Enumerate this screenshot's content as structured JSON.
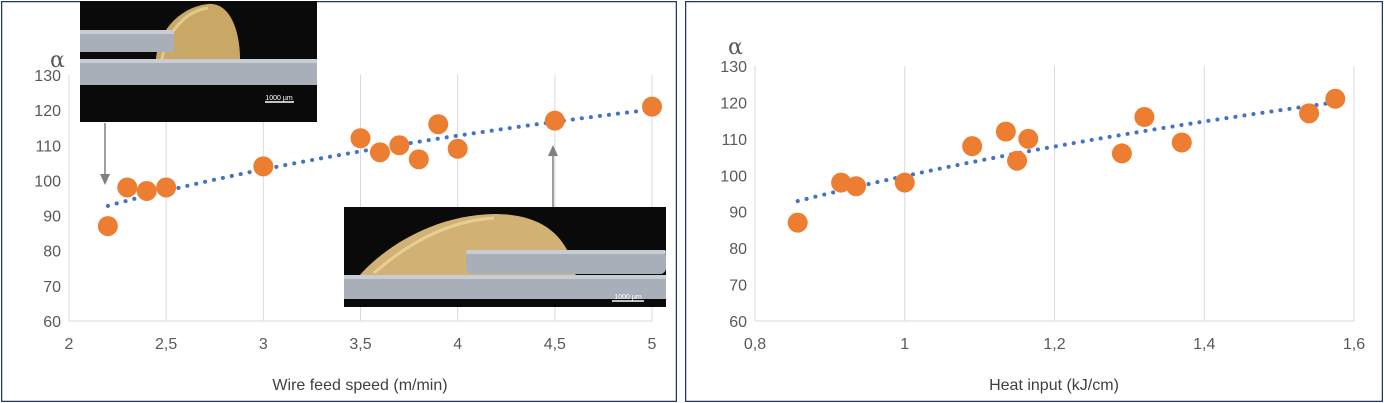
{
  "colors": {
    "points": "#ED7D31",
    "trend": "#4472C4",
    "grid": "#D9D9D9",
    "panel_border": "#1F3864",
    "text": "#595959"
  },
  "chart_data": [
    {
      "type": "scatter",
      "ylabel": "α",
      "xlabel": "Wire feed speed (m/min)",
      "xlim": [
        2,
        5
      ],
      "ylim": [
        60,
        130
      ],
      "xticks": [
        "2",
        "2,5",
        "3",
        "3,5",
        "4",
        "4,5",
        "5"
      ],
      "yticks": [
        "60",
        "70",
        "80",
        "90",
        "100",
        "110",
        "120",
        "130"
      ],
      "grid": "vertical",
      "trendline": "logarithmic (dotted)",
      "x": [
        2.2,
        2.3,
        2.4,
        2.5,
        3.0,
        3.5,
        3.6,
        3.7,
        3.8,
        3.9,
        4.0,
        4.5,
        5.0
      ],
      "y": [
        87,
        98,
        97,
        98,
        104,
        112,
        108,
        110,
        106,
        116,
        109,
        117,
        121
      ],
      "insets": [
        {
          "scale_label": "1000 µm",
          "points_to_x": 2.2
        },
        {
          "scale_label": "1000 µm",
          "points_to_x": 4.5
        }
      ]
    },
    {
      "type": "scatter",
      "ylabel": "α",
      "xlabel": "Heat input (kJ/cm)",
      "xlim": [
        0.8,
        1.6
      ],
      "ylim": [
        60,
        130
      ],
      "xticks": [
        "0,8",
        "1",
        "1,2",
        "1,4",
        "1,6"
      ],
      "yticks": [
        "60",
        "70",
        "80",
        "90",
        "100",
        "110",
        "120",
        "130"
      ],
      "grid": "vertical",
      "trendline": "logarithmic (dotted)",
      "x": [
        0.857,
        0.915,
        0.935,
        1.0,
        1.09,
        1.135,
        1.15,
        1.165,
        1.29,
        1.32,
        1.37,
        1.54,
        1.575
      ],
      "y": [
        87,
        98,
        97,
        98,
        108,
        112,
        104,
        110,
        106,
        116,
        109,
        117,
        121
      ]
    }
  ]
}
